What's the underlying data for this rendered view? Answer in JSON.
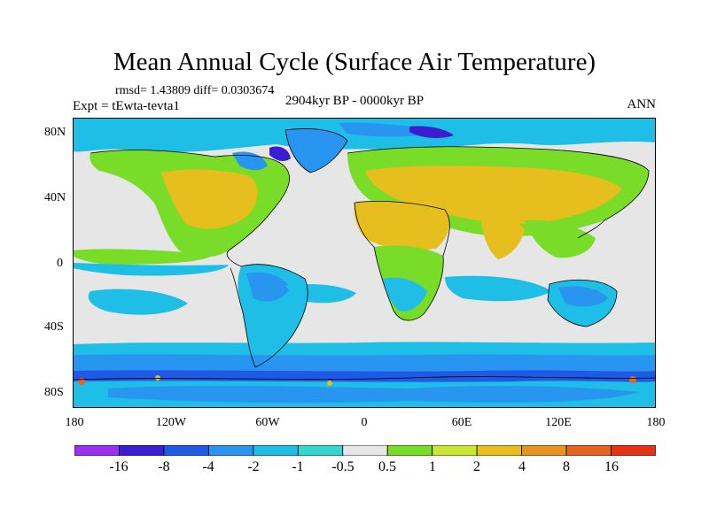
{
  "title": "Mean Annual Cycle (Surface Air Temperature)",
  "stats": "rmsd= 1.43809  diff= 0.0303674",
  "experiment": "Expt = tEwta-tevta1",
  "period": "2904kyr BP - 0000kyr BP",
  "season": "ANN",
  "lat_labels": [
    "80N",
    "40N",
    "0",
    "40S",
    "80S"
  ],
  "lon_labels": [
    "180",
    "120W",
    "60W",
    "0",
    "60E",
    "120E",
    "180"
  ],
  "colorbar": {
    "labels": [
      "-16",
      "-8",
      "-4",
      "-2",
      "-1",
      "-0.5",
      "0.5",
      "1",
      "2",
      "4",
      "8",
      "16"
    ],
    "colors": [
      "#9b30f0",
      "#3c1ed2",
      "#1e5ae6",
      "#2896f0",
      "#1ebee6",
      "#32d7d2",
      "#e6e6e6",
      "#78dc28",
      "#c8e632",
      "#e6be1e",
      "#e6961e",
      "#e6641e",
      "#e63214"
    ]
  },
  "map_palette": {
    "ocean": "#e6e6e6",
    "land_warm": "#e6be1e",
    "land_mild": "#78dc28",
    "cool_light": "#32d7d2",
    "cool": "#1ebee6",
    "cold": "#2896f0",
    "colder": "#1e5ae6",
    "coldest": "#3c1ed2",
    "hot": "#e6641e"
  }
}
